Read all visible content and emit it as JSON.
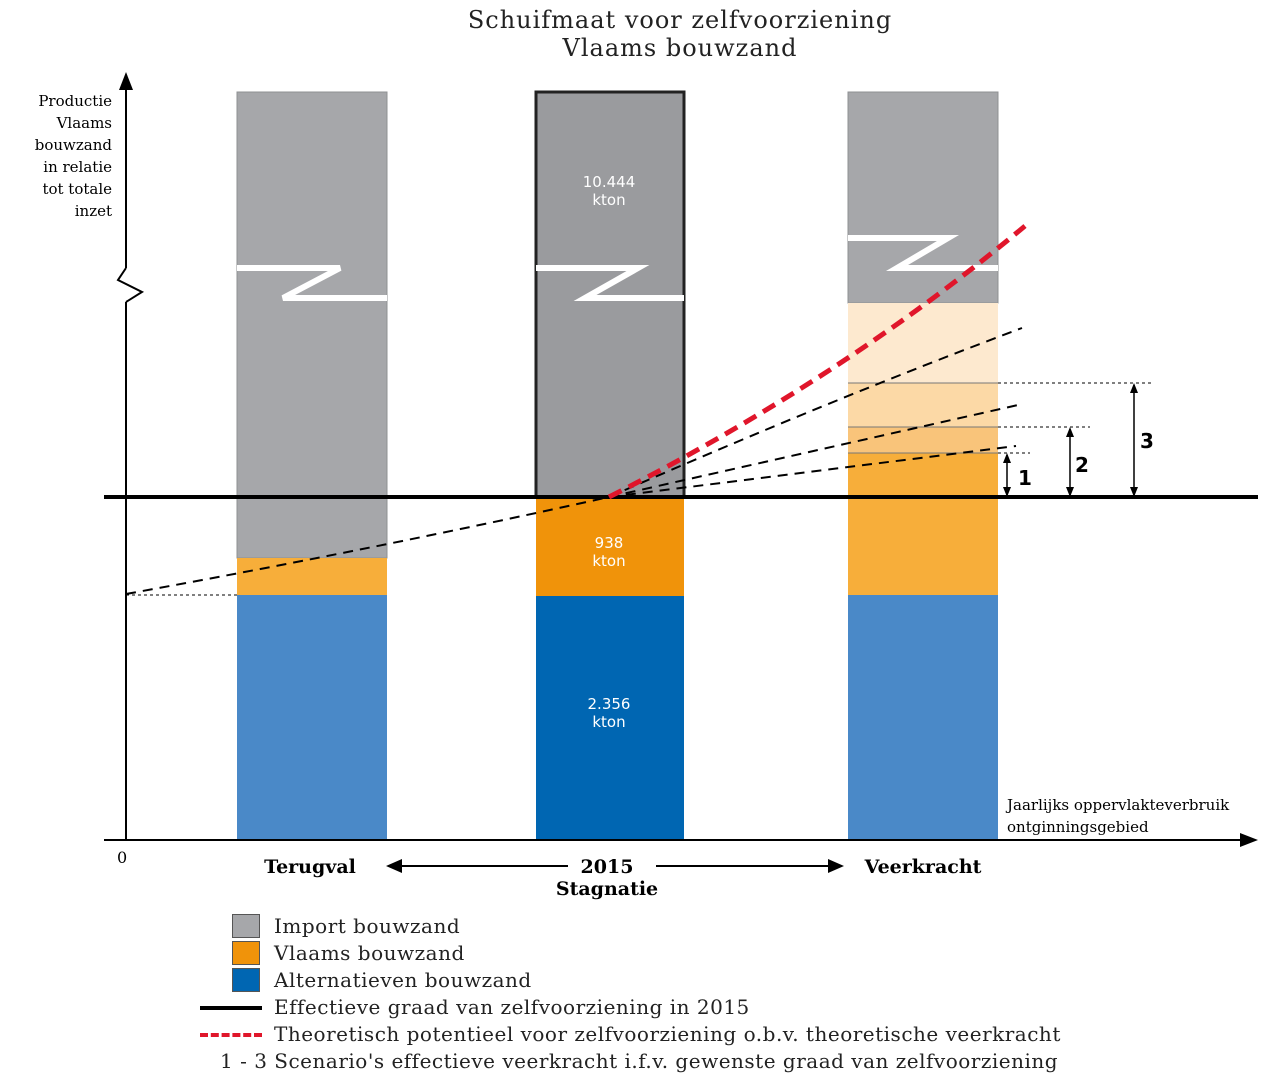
{
  "title": {
    "line1": "Schuifmaat voor zelfvoorziening",
    "line2": "Vlaams bouwzand"
  },
  "y_axis_label": [
    "Productie",
    "Vlaams",
    "bouwzand",
    "in relatie",
    "tot totale",
    "inzet"
  ],
  "x_axis_label": [
    "Jaarlijks oppervlakteverbruik",
    "ontginningsgebied"
  ],
  "origin_label": "0",
  "bars": {
    "center": {
      "import": {
        "value": "10.444",
        "unit": "kton"
      },
      "vlaams": {
        "value": "938",
        "unit": "kton"
      },
      "alternatieven": {
        "value": "2.356",
        "unit": "kton"
      }
    }
  },
  "scenarios": [
    "1",
    "2",
    "3"
  ],
  "x_labels": {
    "left": "Terugval",
    "center": "2015",
    "center_sub": "Stagnatie",
    "right": "Veerkracht"
  },
  "colors": {
    "import": "#a6a7aa",
    "import_dark": "#9a9b9e",
    "vlaams": "#f7ae3a",
    "vlaams_dark": "#f0930a",
    "alternatieven": "#4a89c8",
    "alternatieven_dark": "#0066b2",
    "theoretical": "#e0162b"
  },
  "legend": {
    "import": "Import bouwzand",
    "vlaams": "Vlaams bouwzand",
    "alternatieven": "Alternatieven bouwzand",
    "effectief": "Effectieve graad van zelfvoorziening in 2015",
    "theoretisch": "Theoretisch potentieel voor zelfvoorziening o.b.v. theoretische veerkracht",
    "scenarios": "1 - 3 Scenario's effectieve veerkracht i.f.v. gewenste graad van zelfvoorziening"
  }
}
